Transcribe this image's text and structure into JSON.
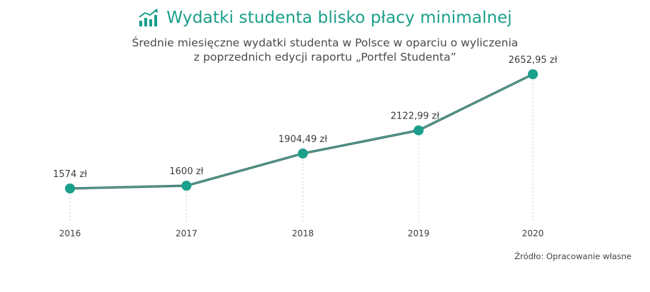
{
  "header": {
    "title": "Wydatki studenta blisko płacy minimalnej",
    "title_icon": "rising-chart-icon",
    "subtitle_line1": "Średnie miesięczne wydatki studenta w Polsce w oparciu o wyliczenia",
    "subtitle_line2": "z poprzednich edycji raportu „Portfel Studenta”"
  },
  "source": "Źródło: Opracowanie własne",
  "colors": {
    "accent": "#1a9f8a",
    "line": "#2f6b5e",
    "grid": "#c8c8c8"
  },
  "chart_data": {
    "type": "line",
    "title": "Wydatki studenta blisko płacy minimalnej",
    "subtitle": "Średnie miesięczne wydatki studenta w Polsce w oparciu o wyliczenia z poprzednich edycji raportu „Portfel Studenta”",
    "x": [
      "2016",
      "2017",
      "2018",
      "2019",
      "2020"
    ],
    "series": [
      {
        "values": [
          1574,
          1600,
          1904.49,
          2122.99,
          2652.95
        ],
        "labels": [
          "1574 zł",
          "1600 zł",
          "1904,49 zł",
          "2122,99 zł",
          "2652,95 zł"
        ]
      }
    ],
    "grid": false
  }
}
